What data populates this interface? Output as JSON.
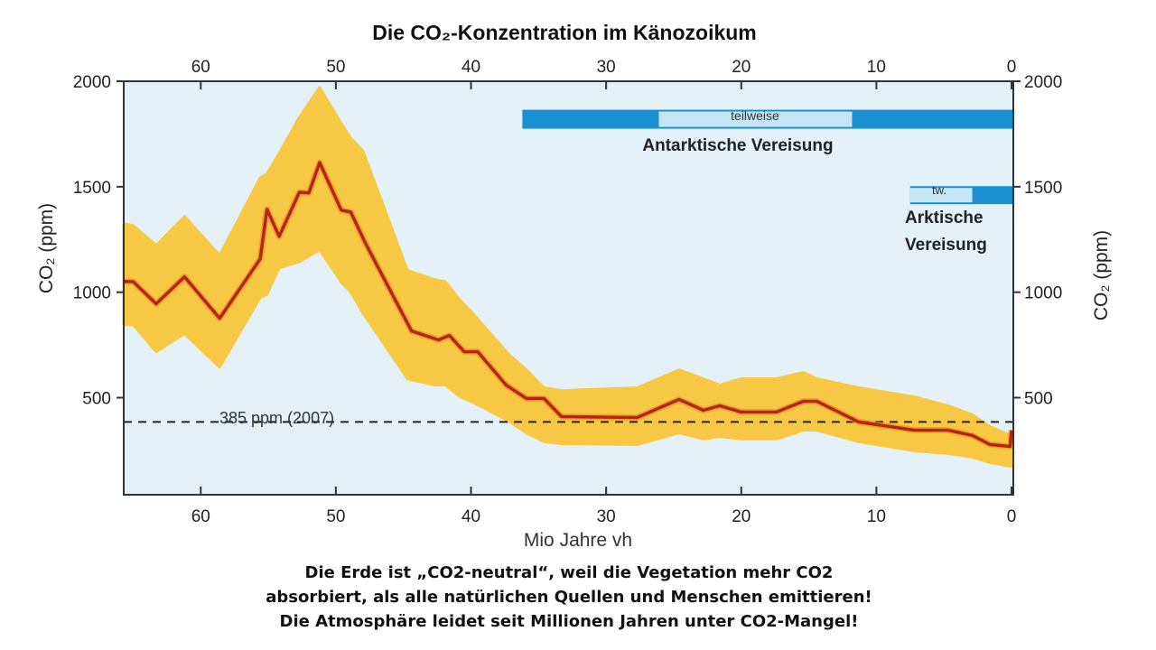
{
  "chart_data": {
    "type": "area",
    "title": "Die CO₂-Konzentration im Känozoikum",
    "xlabel": "Mio Jahre vh",
    "ylabel": "CO₂ (ppm)",
    "ylabel_right": "CO₂ (ppm)",
    "xlim": [
      65.7,
      0
    ],
    "ylim": [
      40,
      2000
    ],
    "x_ticks": [
      60,
      50,
      40,
      30,
      20,
      10,
      0
    ],
    "y_ticks": [
      500,
      1000,
      1500,
      2000
    ],
    "grid": false,
    "colors": {
      "background": "#e4f1f8",
      "band": "#f6c843",
      "line": "#b3280c",
      "halo": "#f08a30",
      "ice": "#1a8fd2",
      "ice_partial": "#c4e6f4"
    },
    "series": [
      {
        "role": "median",
        "x": [
          65.7,
          65.0,
          63.3,
          61.2,
          58.6,
          55.6,
          55.1,
          54.2,
          52.7,
          52.0,
          51.2,
          49.6,
          48.9,
          47.8,
          44.4,
          42.4,
          41.6,
          40.5,
          39.5,
          37.4,
          35.9,
          34.6,
          33.3,
          27.7,
          24.6,
          22.8,
          21.6,
          20.0,
          17.4,
          15.4,
          14.4,
          11.3,
          7.2,
          4.7,
          2.9,
          1.6,
          0.1,
          0
        ],
        "y": [
          1051,
          1050,
          945,
          1073,
          876,
          1158,
          1393,
          1265,
          1474,
          1470,
          1615,
          1389,
          1380,
          1231,
          816,
          774,
          795,
          718,
          718,
          560,
          496,
          496,
          410,
          406,
          492,
          440,
          462,
          432,
          432,
          483,
          483,
          385,
          346,
          346,
          321,
          278,
          269,
          346
        ]
      },
      {
        "role": "upper",
        "x": [
          65.7,
          65.0,
          63.3,
          61.2,
          58.6,
          55.6,
          55.1,
          54.2,
          52.7,
          51.2,
          49.6,
          48.9,
          48.0,
          44.7,
          42.7,
          41.9,
          40.8,
          39.9,
          37.2,
          35.9,
          34.6,
          33.3,
          27.7,
          24.6,
          22.8,
          21.6,
          20.0,
          17.4,
          15.4,
          14.4,
          11.3,
          7.2,
          4.7,
          2.9,
          1.6,
          0.1,
          0
        ],
        "y": [
          1325,
          1316,
          1222,
          1359,
          1175,
          1543,
          1560,
          1658,
          1829,
          1970,
          1800,
          1730,
          1671,
          1103,
          1060,
          1050,
          961,
          902,
          705,
          632,
          547,
          534,
          547,
          632,
          590,
          560,
          590,
          590,
          620,
          590,
          547,
          504,
          462,
          419,
          363,
          321,
          321
        ]
      },
      {
        "role": "lower",
        "x": [
          65.7,
          65.0,
          63.3,
          61.2,
          58.6,
          55.6,
          55.1,
          54.2,
          52.7,
          51.2,
          49.6,
          48.9,
          48.0,
          44.7,
          42.7,
          41.9,
          40.8,
          39.9,
          37.2,
          35.9,
          34.6,
          33.3,
          27.7,
          24.6,
          22.8,
          21.6,
          20.0,
          17.4,
          15.4,
          14.4,
          11.3,
          7.2,
          4.7,
          2.9,
          1.6,
          0.1,
          0
        ],
        "y": [
          846,
          846,
          718,
          803,
          645,
          974,
          990,
          1115,
          1145,
          1201,
          1047,
          1000,
          902,
          590,
          560,
          560,
          504,
          480,
          389,
          333,
          291,
          282,
          278,
          333,
          304,
          316,
          304,
          304,
          346,
          346,
          291,
          248,
          235,
          218,
          192,
          175,
          175
        ]
      }
    ],
    "reference_line": {
      "value": 385,
      "label": "385 ppm (2007)"
    },
    "glaciation_bars": [
      {
        "label": "Antarktische Vereisung",
        "partial_label": "teilweise",
        "start": 36.2,
        "partial_end": 11.8,
        "end": 0,
        "level": 1820
      },
      {
        "label_lines": [
          "Arktische",
          "Vereisung"
        ],
        "partial_label": "tw.",
        "start": 7.5,
        "partial_end": 2.9,
        "end": 0,
        "level": 1460
      }
    ]
  },
  "caption": {
    "lines": [
      "Die Erde ist „CO2-neutral“, weil die Vegetation mehr CO2",
      "absorbiert, als alle natürlichen Quellen und Menschen emittieren!",
      "Die Atmosphäre leidet seit Millionen Jahren unter CO2-Mangel!"
    ]
  }
}
